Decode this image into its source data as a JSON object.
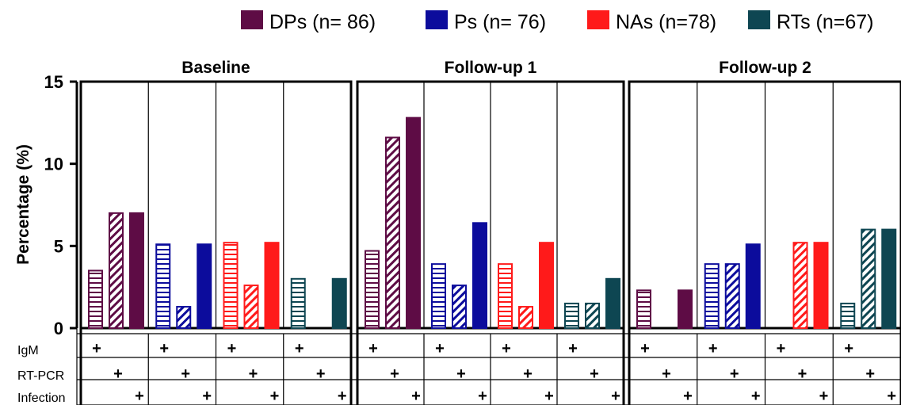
{
  "chart_data": {
    "type": "bar",
    "ylabel": "Percentage (%)",
    "ylim": [
      0,
      15
    ],
    "yticks": [
      0,
      5,
      10,
      15
    ],
    "legend_position": "top-right",
    "groups": [
      {
        "name": "DPs (n= 86)",
        "color": "#5e0c45"
      },
      {
        "name": "Ps (n= 76)",
        "color": "#0c0c9c"
      },
      {
        "name": "NAs (n=78)",
        "color": "#ff1a1a"
      },
      {
        "name": "RTs (n=67)",
        "color": "#0e4652"
      }
    ],
    "marker_rows": [
      "IgM",
      "RT-PCR",
      "Infection"
    ],
    "marker_symbol": "+",
    "bar_patterns": [
      "horizontal-lines",
      "diagonal-lines",
      "solid"
    ],
    "panels": [
      {
        "title": "Baseline",
        "values": [
          [
            3.5,
            7.0,
            7.0
          ],
          [
            5.1,
            1.3,
            5.1
          ],
          [
            5.2,
            2.6,
            5.2
          ],
          [
            3.0,
            0,
            3.0
          ]
        ]
      },
      {
        "title": "Follow-up 1",
        "values": [
          [
            4.7,
            11.6,
            12.8
          ],
          [
            3.9,
            2.6,
            6.4
          ],
          [
            3.9,
            1.3,
            5.2
          ],
          [
            1.5,
            1.5,
            3.0
          ]
        ]
      },
      {
        "title": "Follow-up 2",
        "values": [
          [
            2.3,
            0,
            2.3
          ],
          [
            3.9,
            3.9,
            5.1
          ],
          [
            0,
            5.2,
            5.2
          ],
          [
            1.5,
            6.0,
            6.0
          ]
        ]
      }
    ]
  }
}
